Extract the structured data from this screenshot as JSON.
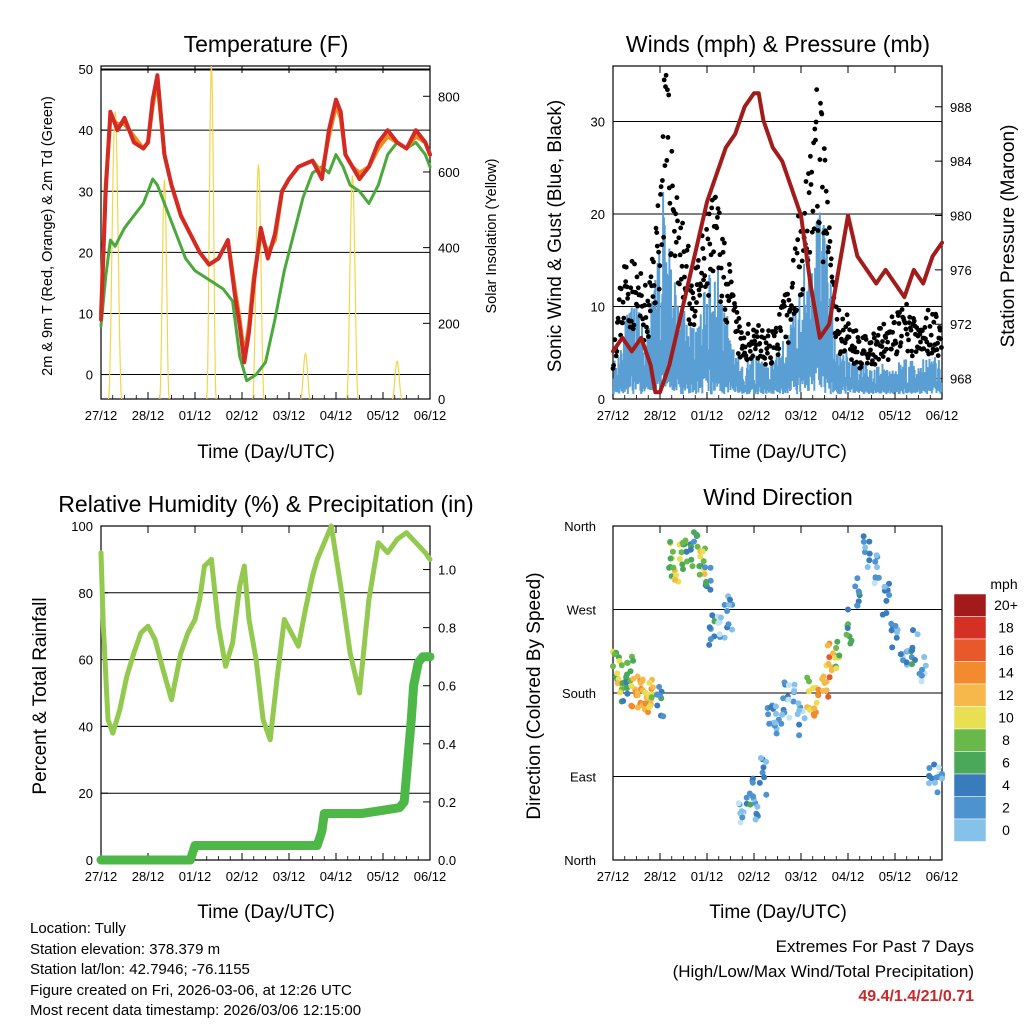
{
  "colors": {
    "red": "#d42a24",
    "orange": "#f08a1c",
    "green": "#4aa83c",
    "yellow": "#f2d64a",
    "blue": "#5a9fd4",
    "black": "#000000",
    "maroon": "#a31c1c",
    "rh_green": "#92c94e",
    "precip_green": "#4db848",
    "speed_scale": [
      "#c1e3f5",
      "#86c1ea",
      "#4d93cf",
      "#3a7bbd",
      "#4aa85a",
      "#68b84a",
      "#e8e052",
      "#f6b84a",
      "#f28a2e",
      "#e8582a",
      "#d43024",
      "#a31a1a"
    ]
  },
  "x_ticks": [
    "27/12",
    "28/12",
    "01/12",
    "02/12",
    "03/12",
    "04/12",
    "05/12",
    "06/12"
  ],
  "xlabel": "Time (Day/UTC)",
  "chart_data": [
    {
      "id": "temperature",
      "type": "line",
      "title": "Temperature (F)",
      "ylabel": "2m & 9m T (Red, Orange) & 2m Td (Green)",
      "y2label": "Solar Insolation (Yellow)",
      "ylim": [
        -4,
        50.5
      ],
      "y2lim": [
        0,
        880
      ],
      "yticks": [
        0,
        10,
        20,
        30,
        40,
        50
      ],
      "y2ticks": [
        0,
        200,
        400,
        600,
        800
      ],
      "series": [
        {
          "name": "2m T",
          "color": "red",
          "x": [
            0,
            0.1,
            0.2,
            0.35,
            0.5,
            0.7,
            0.9,
            1.0,
            1.1,
            1.2,
            1.35,
            1.5,
            1.7,
            1.9,
            2.1,
            2.3,
            2.5,
            2.7,
            2.85,
            2.95,
            3.05,
            3.15,
            3.25,
            3.4,
            3.55,
            3.7,
            3.85,
            4.0,
            4.2,
            4.5,
            4.7,
            4.85,
            5.0,
            5.1,
            5.2,
            5.35,
            5.5,
            5.7,
            5.9,
            6.1,
            6.3,
            6.5,
            6.7,
            6.9,
            7.0
          ],
          "values": [
            9,
            30,
            43,
            40,
            42,
            38,
            37,
            38,
            45,
            49,
            36,
            31,
            26,
            23,
            20,
            18,
            19,
            22,
            13,
            8,
            2,
            7,
            15,
            24,
            19,
            23,
            30,
            32,
            34,
            35,
            32,
            40,
            45,
            43,
            36,
            34,
            32,
            34,
            38,
            40,
            38,
            37,
            40,
            38,
            36
          ]
        },
        {
          "name": "9m T",
          "color": "orange",
          "x": [
            0,
            0.1,
            0.2,
            0.35,
            0.5,
            0.7,
            0.9,
            1.0,
            1.1,
            1.2,
            1.35,
            1.5,
            1.7,
            1.9,
            2.1,
            2.3,
            2.5,
            2.7,
            2.85,
            2.95,
            3.05,
            3.15,
            3.25,
            3.4,
            3.55,
            3.7,
            3.85,
            4.0,
            4.2,
            4.5,
            4.7,
            4.85,
            5.0,
            5.1,
            5.2,
            5.35,
            5.5,
            5.7,
            5.9,
            6.1,
            6.3,
            6.5,
            6.7,
            6.9,
            7.0
          ],
          "values": [
            10,
            31,
            42,
            41,
            41,
            39,
            37,
            38,
            44,
            48,
            36,
            31,
            26,
            23,
            20,
            18,
            19,
            22,
            14,
            9,
            3,
            8,
            16,
            23,
            20,
            22,
            30,
            32,
            34,
            35,
            33,
            39,
            44,
            42,
            36,
            34,
            33,
            34,
            37,
            39,
            38,
            37,
            39,
            38,
            36
          ]
        },
        {
          "name": "2m Td",
          "color": "green",
          "x": [
            0,
            0.1,
            0.2,
            0.3,
            0.5,
            0.7,
            0.9,
            1.1,
            1.2,
            1.4,
            1.6,
            1.8,
            2.0,
            2.2,
            2.4,
            2.6,
            2.8,
            2.95,
            3.1,
            3.3,
            3.5,
            3.7,
            3.9,
            4.1,
            4.3,
            4.5,
            4.7,
            4.85,
            5.0,
            5.15,
            5.3,
            5.5,
            5.7,
            5.9,
            6.1,
            6.3,
            6.5,
            6.7,
            6.9,
            7.0
          ],
          "values": [
            8,
            16,
            22,
            21,
            24,
            26,
            28,
            32,
            31,
            27,
            23,
            19,
            17,
            16,
            15,
            14,
            12,
            3,
            -1,
            0,
            2,
            9,
            17,
            23,
            29,
            33,
            34,
            33,
            36,
            34,
            31,
            30,
            28,
            31,
            36,
            38,
            37,
            38,
            36,
            34
          ]
        },
        {
          "name": "Solar Insolation",
          "color": "yellow",
          "axis": "right",
          "peaks": [
            {
              "c": 0.3,
              "w": 0.14,
              "h": 760
            },
            {
              "c": 1.35,
              "w": 0.1,
              "h": 580
            },
            {
              "c": 2.35,
              "w": 0.1,
              "h": 880
            },
            {
              "c": 3.35,
              "w": 0.12,
              "h": 620
            },
            {
              "c": 4.35,
              "w": 0.1,
              "h": 120
            },
            {
              "c": 5.35,
              "w": 0.12,
              "h": 590
            },
            {
              "c": 6.3,
              "w": 0.1,
              "h": 100
            }
          ]
        }
      ]
    },
    {
      "id": "winds",
      "type": "scatter",
      "title": "Winds (mph) & Pressure (mb)",
      "ylabel": "Sonic Wind & Gust (Blue, Black)",
      "y2label": "Station Pressure (Maroon)",
      "ylim": [
        0,
        36
      ],
      "y2lim": [
        966.5,
        991
      ],
      "yticks": [
        0,
        10,
        20,
        30
      ],
      "y2ticks": [
        968,
        972,
        976,
        980,
        984,
        988
      ],
      "series": [
        {
          "name": "Sonic Wind",
          "color": "blue",
          "x": [
            0,
            0.25,
            0.5,
            0.75,
            1.0,
            1.1,
            1.25,
            1.5,
            1.75,
            2.0,
            2.25,
            2.5,
            2.75,
            3.0,
            3.25,
            3.5,
            3.75,
            4.0,
            4.25,
            4.5,
            4.75,
            5.0,
            5.25,
            5.5,
            5.75,
            6.0,
            6.25,
            6.5,
            6.75,
            7.0
          ],
          "values": [
            3,
            7,
            8,
            6,
            14,
            19,
            12,
            8,
            6,
            10,
            12,
            6,
            3,
            4,
            3,
            4,
            6,
            10,
            16,
            17,
            4,
            4,
            3,
            3,
            3,
            3,
            4,
            3,
            4,
            3
          ]
        },
        {
          "name": "Gust",
          "color": "black",
          "x": [
            0,
            0.25,
            0.5,
            0.75,
            1.0,
            1.1,
            1.2,
            1.5,
            1.75,
            2.0,
            2.25,
            2.5,
            2.75,
            3.0,
            3.25,
            3.5,
            3.75,
            4.0,
            4.25,
            4.4,
            4.75,
            5.0,
            5.25,
            5.5,
            5.75,
            6.0,
            6.25,
            6.5,
            6.75,
            7.0
          ],
          "values": [
            6,
            14,
            13,
            10,
            22,
            33,
            28,
            16,
            12,
            18,
            20,
            12,
            6,
            8,
            6,
            8,
            11,
            20,
            28,
            30,
            9,
            8,
            6,
            6,
            7,
            8,
            9,
            7,
            9,
            8
          ]
        },
        {
          "name": "Station Pressure",
          "color": "maroon",
          "axis": "right",
          "x": [
            0,
            0.2,
            0.4,
            0.6,
            0.8,
            0.9,
            1.0,
            1.2,
            1.4,
            1.6,
            1.8,
            2.0,
            2.2,
            2.4,
            2.6,
            2.8,
            3.0,
            3.1,
            3.2,
            3.4,
            3.6,
            3.8,
            4.0,
            4.2,
            4.4,
            4.6,
            4.8,
            5.0,
            5.2,
            5.4,
            5.6,
            5.8,
            6.0,
            6.2,
            6.4,
            6.6,
            6.8,
            7.0
          ],
          "values": [
            970,
            971,
            970,
            971,
            969,
            967,
            967,
            969,
            972,
            975,
            978,
            981,
            983,
            985,
            986,
            988,
            989,
            989,
            987,
            985,
            984,
            982,
            980,
            975,
            971,
            972,
            976,
            980,
            977,
            976,
            975,
            976,
            975,
            974,
            976,
            975,
            977,
            978
          ]
        }
      ]
    },
    {
      "id": "humidity",
      "type": "line",
      "title": "Relative Humidity (%) & Precipitation (in)",
      "ylabel": "Percent & Total Rainfall",
      "ylim": [
        0,
        100
      ],
      "y2lim": [
        0,
        1.15
      ],
      "yticks": [
        0,
        20,
        40,
        60,
        80,
        100
      ],
      "y2ticks": [
        0.0,
        0.2,
        0.4,
        0.6,
        0.8,
        1.0
      ],
      "series": [
        {
          "name": "Relative Humidity",
          "color": "rh_green",
          "x": [
            0,
            0.05,
            0.15,
            0.25,
            0.4,
            0.55,
            0.7,
            0.85,
            1.0,
            1.15,
            1.3,
            1.5,
            1.7,
            1.85,
            2.0,
            2.1,
            2.2,
            2.35,
            2.5,
            2.65,
            2.8,
            2.95,
            3.05,
            3.15,
            3.3,
            3.45,
            3.6,
            3.75,
            3.9,
            4.05,
            4.2,
            4.35,
            4.5,
            4.6,
            4.75,
            4.9,
            5.1,
            5.3,
            5.5,
            5.7,
            5.9,
            6.1,
            6.3,
            6.5,
            6.7,
            6.9,
            7.0
          ],
          "values": [
            92,
            70,
            42,
            38,
            45,
            55,
            62,
            68,
            70,
            66,
            58,
            48,
            62,
            68,
            72,
            78,
            88,
            90,
            70,
            58,
            65,
            82,
            88,
            72,
            60,
            42,
            36,
            55,
            72,
            68,
            64,
            75,
            85,
            90,
            95,
            100,
            82,
            62,
            50,
            78,
            95,
            92,
            96,
            98,
            95,
            92,
            90
          ]
        },
        {
          "name": "Total Precipitation",
          "color": "precip_green",
          "axis": "right",
          "x": [
            0,
            1.9,
            2.0,
            4.6,
            4.7,
            4.75,
            5.45,
            5.55,
            6.35,
            6.45,
            6.6,
            6.65,
            6.75,
            6.85,
            6.95,
            7.0
          ],
          "values": [
            0,
            0,
            0.05,
            0.05,
            0.1,
            0.16,
            0.16,
            0.16,
            0.18,
            0.2,
            0.48,
            0.6,
            0.68,
            0.7,
            0.7,
            0.7
          ]
        }
      ]
    },
    {
      "id": "wind_direction",
      "type": "scatter",
      "title": "Wind Direction",
      "ylabel": "Direction (Colored By Speed)",
      "ylim": [
        0,
        360
      ],
      "yticks": [
        "North",
        "East",
        "South",
        "West",
        "North"
      ],
      "legend_title": "mph",
      "legend_labels": [
        "20+",
        "18",
        "16",
        "14",
        "12",
        "10",
        "8",
        "6",
        "4",
        "2",
        "0"
      ],
      "series": [
        {
          "name": "Direction",
          "x": [
            0.05,
            0.15,
            0.25,
            0.35,
            0.45,
            0.55,
            0.65,
            0.75,
            0.85,
            1.0,
            1.2,
            1.35,
            1.5,
            1.65,
            1.8,
            1.9,
            2.0,
            2.1,
            2.3,
            2.5,
            2.7,
            2.9,
            3.05,
            3.2,
            3.35,
            3.5,
            3.65,
            3.8,
            4.0,
            4.2,
            4.35,
            4.5,
            4.65,
            4.8,
            5.0,
            5.2,
            5.4,
            5.6,
            5.8,
            6.0,
            6.2,
            6.4,
            6.6,
            6.8,
            6.95
          ],
          "values": [
            210,
            195,
            185,
            200,
            180,
            178,
            182,
            175,
            178,
            170,
            325,
            320,
            330,
            330,
            335,
            320,
            310,
            250,
            255,
            265,
            60,
            75,
            50,
            90,
            150,
            150,
            175,
            170,
            150,
            178,
            175,
            190,
            215,
            220,
            250,
            290,
            330,
            310,
            280,
            240,
            210,
            230,
            210,
            100,
            90
          ],
          "speeds": [
            10,
            12,
            9,
            8,
            14,
            15,
            16,
            13,
            12,
            6,
            10,
            12,
            9,
            7,
            8,
            11,
            6,
            5,
            3,
            4,
            2,
            5,
            3,
            4,
            4,
            3,
            4,
            2,
            3,
            12,
            14,
            15,
            16,
            10,
            8,
            5,
            4,
            3,
            5,
            4,
            3,
            5,
            3,
            4,
            2
          ]
        }
      ]
    }
  ],
  "footer": {
    "location": "Location: Tully",
    "elevation": "Station elevation: 378.379 m",
    "latlon": "Station lat/lon: 42.7946; -76.1155",
    "created": "Figure created on Fri, 2026-03-06, at 12:26 UTC",
    "recent": "Most recent data timestamp: 2026/03/06 12:15:00"
  },
  "extremes": {
    "title": "Extremes For Past 7 Days",
    "subtitle": "(High/Low/Max Wind/Total Precipitation)",
    "values": "49.4/1.4/21/0.71"
  }
}
